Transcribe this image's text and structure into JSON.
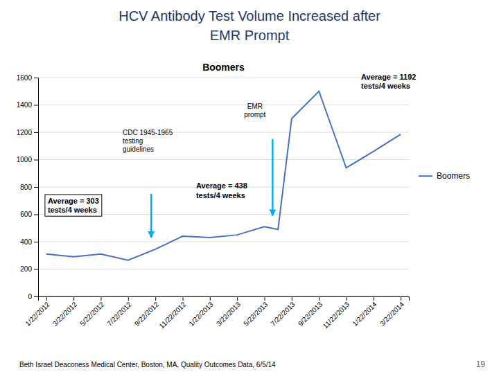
{
  "chart_data": {
    "type": "line",
    "title": "HCV Antibody Test Volume Increased after\nEMR Prompt",
    "subtitle": "Boomers",
    "x": [
      0,
      1,
      2,
      3,
      4,
      5,
      6,
      7,
      8,
      8.5,
      9,
      10,
      11,
      12,
      13
    ],
    "xlim": [
      -0.3,
      13.3
    ],
    "xticks": [
      {
        "value": 0,
        "label": "1/22/2012"
      },
      {
        "value": 1,
        "label": "3/22/2012"
      },
      {
        "value": 2,
        "label": "5/22/2012"
      },
      {
        "value": 3,
        "label": "7/22/2012"
      },
      {
        "value": 4,
        "label": "9/22/2012"
      },
      {
        "value": 5,
        "label": "11/22/2012"
      },
      {
        "value": 6,
        "label": "1/22/2013"
      },
      {
        "value": 7,
        "label": "3/22/2013"
      },
      {
        "value": 8,
        "label": "5/22/2013"
      },
      {
        "value": 9,
        "label": "7/22/2013"
      },
      {
        "value": 10,
        "label": "9/22/2013"
      },
      {
        "value": 11,
        "label": "11/22/2013"
      },
      {
        "value": 12,
        "label": "1/22/2014"
      },
      {
        "value": 13,
        "label": "3/22/2014"
      }
    ],
    "series": [
      {
        "name": "Boomers",
        "color": "#4472C4",
        "values": [
          310,
          290,
          310,
          265,
          345,
          440,
          430,
          450,
          510,
          490,
          1300,
          1500,
          940,
          1060,
          1185
        ]
      }
    ],
    "ylim": [
      0,
      1600
    ],
    "yticks": [
      0,
      200,
      400,
      600,
      800,
      1000,
      1200,
      1400,
      1600
    ],
    "grid": true,
    "legend": "right",
    "annotations": [
      {
        "text": "Average = 303\ntests/4 weeks"
      },
      {
        "text": "CDC 1945-1965\ntesting\nguidelines"
      },
      {
        "text": "Average = 438\ntests/4 weeks"
      },
      {
        "text": "EMR\nprompt"
      },
      {
        "text": "Average = 1192\ntests/4 weeks"
      },
      {
        "text": "Beth Israel Deaconess Medical Center, Boston, MA, Quality Outcomes Data, 6/5/14"
      },
      {
        "text": "19"
      }
    ]
  }
}
